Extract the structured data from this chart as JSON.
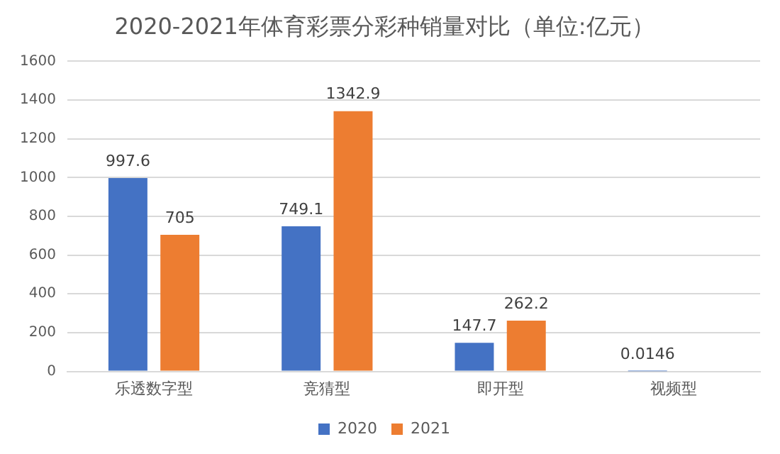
{
  "chart_data": {
    "type": "bar",
    "title": "2020-2021年体育彩票分彩种销量对比（单位:亿元）",
    "categories": [
      "乐透数字型",
      "竞猜型",
      "即开型",
      "视频型"
    ],
    "series": [
      {
        "name": "2020",
        "color": "#4472c4",
        "values": [
          997.6,
          749.1,
          147.7,
          0.0146
        ]
      },
      {
        "name": "2021",
        "color": "#ed7d31",
        "values": [
          705,
          1342.9,
          262.2,
          null
        ]
      }
    ],
    "ylim": [
      0,
      1600
    ],
    "yticks": [
      0,
      200,
      400,
      600,
      800,
      1000,
      1200,
      1400,
      1600
    ],
    "grid": "y",
    "legend": "bottom",
    "data_labels": true
  }
}
